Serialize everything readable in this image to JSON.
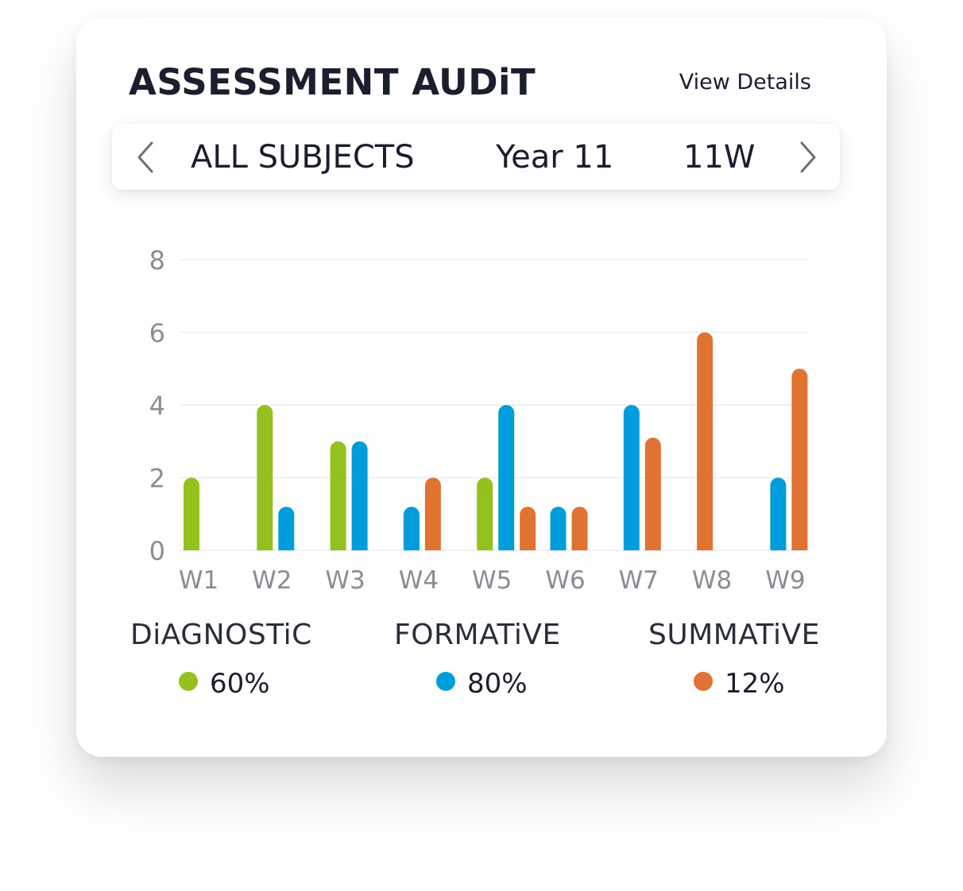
{
  "header": {
    "title": "ASSESSMENT AUDiT",
    "view_details": "View Details"
  },
  "selector": {
    "subject": "ALL SUBJECTS",
    "year": "Year 11",
    "class": "11W",
    "prev_icon": "chevron-left-icon",
    "next_icon": "chevron-right-icon"
  },
  "chart_data": {
    "type": "bar",
    "categories": [
      "W1",
      "W2",
      "W3",
      "W4",
      "W5",
      "W6",
      "W7",
      "W8",
      "W9"
    ],
    "ylim": [
      0,
      8
    ],
    "yticks": [
      0,
      2,
      4,
      6,
      8
    ],
    "grid": true,
    "series": [
      {
        "name": "DiAGNOSTiC",
        "color": "#95c11f",
        "values": [
          2,
          4,
          3,
          0,
          2,
          0,
          0,
          0,
          0
        ]
      },
      {
        "name": "FORMATiVE",
        "color": "#009ddc",
        "values": [
          0,
          1.2,
          3,
          1.2,
          4,
          1.2,
          4,
          0,
          2
        ]
      },
      {
        "name": "SUMMATiVE",
        "color": "#e07232",
        "values": [
          0,
          0,
          0,
          2,
          1.2,
          1.2,
          3.1,
          6,
          5
        ]
      }
    ]
  },
  "legend": [
    {
      "label": "DiAGNOSTiC",
      "percent": "60%",
      "color": "#95c11f"
    },
    {
      "label": "FORMATiVE",
      "percent": "80%",
      "color": "#009ddc"
    },
    {
      "label": "SUMMATiVE",
      "percent": "12%",
      "color": "#e07232"
    }
  ]
}
